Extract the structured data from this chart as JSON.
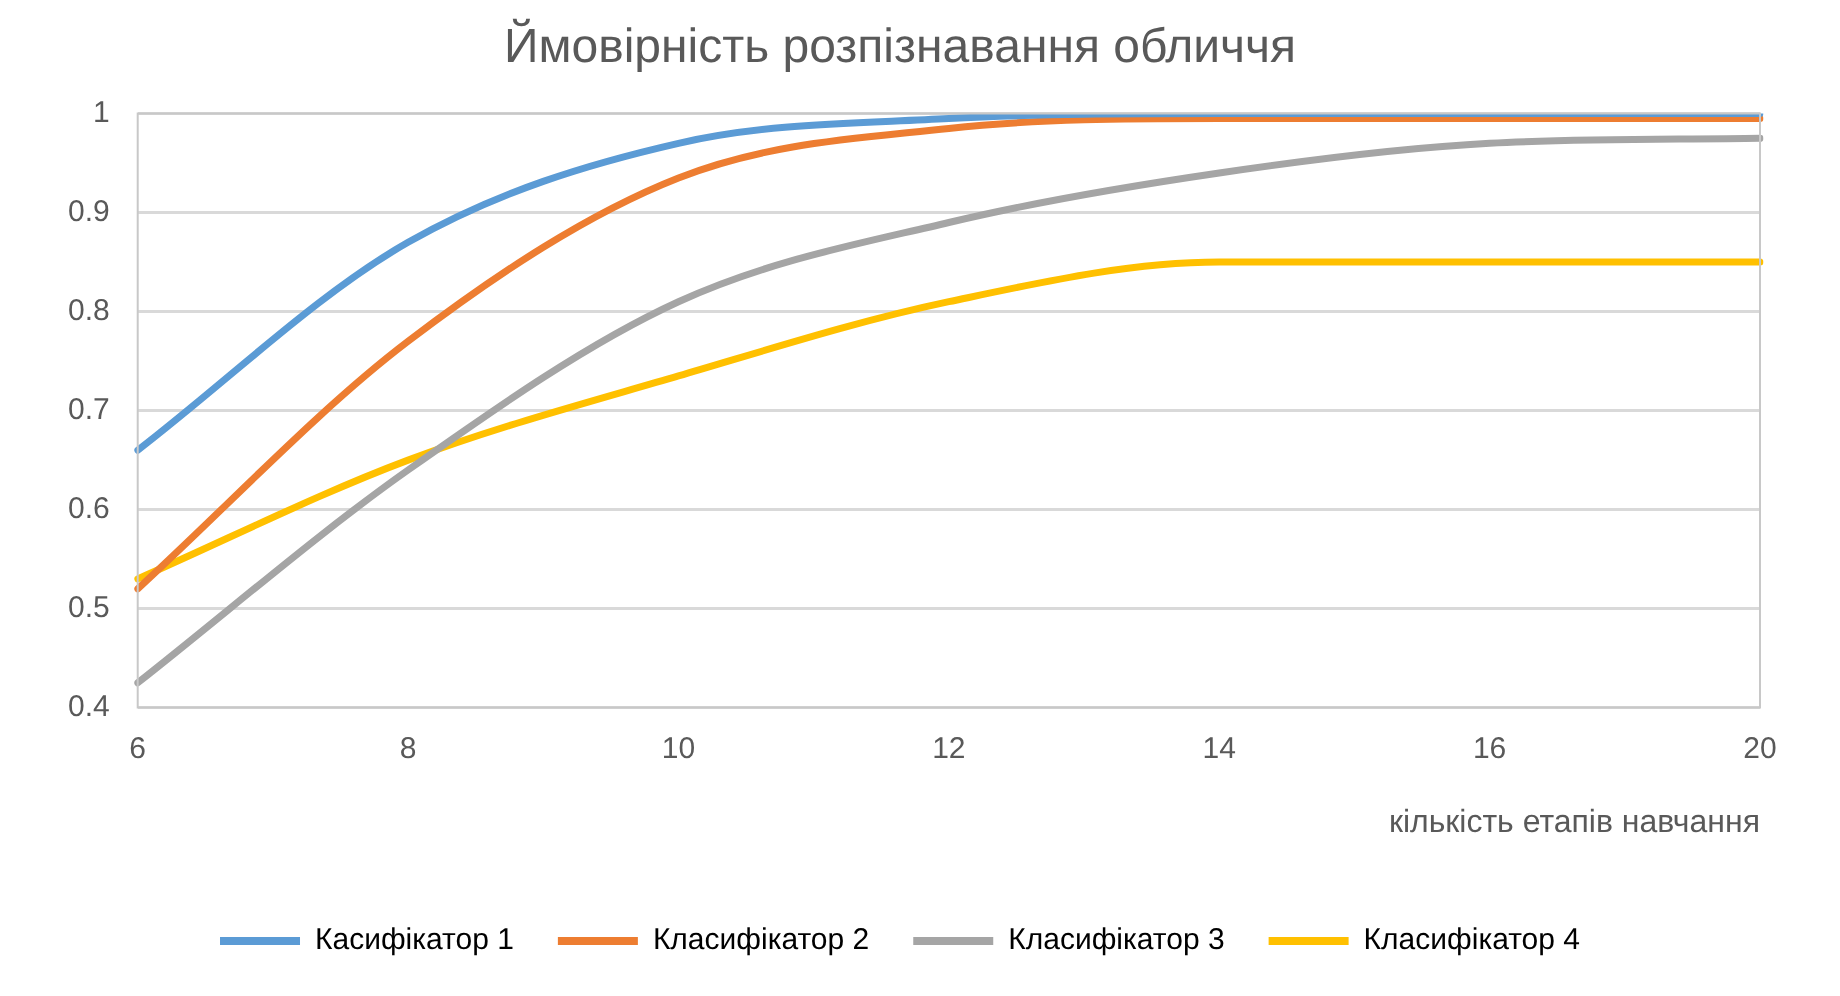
{
  "chart_data": {
    "type": "line",
    "title": "Ймовірність розпізнавання обличчя",
    "xlabel": "кількість етапів навчання",
    "categories": [
      "6",
      "8",
      "10",
      "12",
      "14",
      "16",
      "20"
    ],
    "series": [
      {
        "name": "Касифікатор 1",
        "color": "#5b9bd5",
        "values": [
          0.66,
          0.87,
          0.97,
          0.995,
          1,
          1,
          1
        ]
      },
      {
        "name": "Класифікатор 2",
        "color": "#ed7d31",
        "values": [
          0.52,
          0.77,
          0.935,
          0.985,
          0.995,
          0.995,
          0.995
        ]
      },
      {
        "name": "Класифікатор 3",
        "color": "#a5a5a5",
        "values": [
          0.425,
          0.64,
          0.81,
          0.89,
          0.94,
          0.97,
          0.975
        ]
      },
      {
        "name": "Класифікатор 4",
        "color": "#ffc000",
        "values": [
          0.53,
          0.65,
          0.735,
          0.81,
          0.85,
          0.85,
          0.85
        ]
      }
    ],
    "ylim": [
      0.4,
      1
    ],
    "yticks": [
      0.4,
      0.5,
      0.6,
      0.7,
      0.8,
      0.9,
      1
    ],
    "grid": "y",
    "legend": "bottom",
    "marker": "none",
    "line_style": "solid"
  }
}
